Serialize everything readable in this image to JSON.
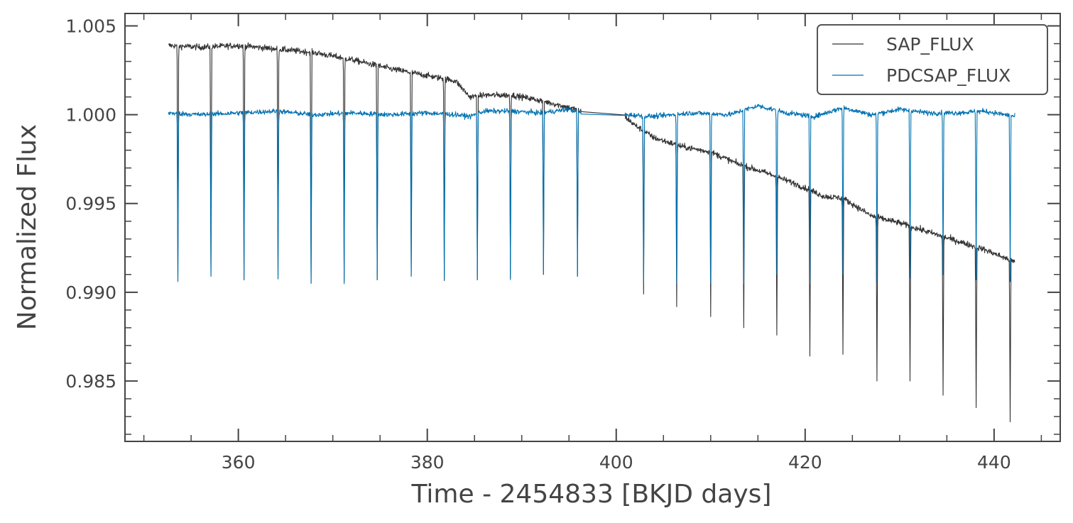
{
  "chart_data": {
    "type": "line",
    "title": "",
    "xlabel": "Time - 2454833 [BKJD days]",
    "ylabel": "Normalized Flux",
    "xlim": [
      348,
      447
    ],
    "ylim": [
      0.9816,
      1.0057
    ],
    "x_ticks": [
      360,
      380,
      400,
      420,
      440
    ],
    "x_tick_labels": [
      "360",
      "380",
      "400",
      "420",
      "440"
    ],
    "y_ticks": [
      0.985,
      0.99,
      0.995,
      1.0,
      1.005
    ],
    "y_tick_labels": [
      "0.985",
      "0.990",
      "0.995",
      "1.000",
      "1.005"
    ],
    "grid": false,
    "legend_position": "upper-right",
    "gap": [
      396.3,
      400.9
    ],
    "transit_epoch": 353.6,
    "transit_period": 3.5225,
    "series": [
      {
        "name": "SAP_FLUX",
        "color": "#333333",
        "baseline_x": [
          352.6,
          356,
          360,
          364,
          368,
          372,
          376,
          380,
          383,
          384.5,
          386,
          389,
          392,
          395,
          396.3,
          400.9,
          402,
          404,
          407,
          410,
          413,
          416,
          419,
          422,
          424,
          427,
          430,
          433,
          436,
          439,
          442.2
        ],
        "baseline_y": [
          1.0039,
          1.0038,
          1.0039,
          1.0037,
          1.0035,
          1.0031,
          1.0026,
          1.0022,
          1.0019,
          1.001,
          1.0011,
          1.0011,
          1.0008,
          1.0004,
          1.0002,
          0.9999,
          0.9994,
          0.9987,
          0.9982,
          0.9979,
          0.9972,
          0.9967,
          0.9961,
          0.9954,
          0.9953,
          0.9943,
          0.9939,
          0.9934,
          0.9929,
          0.9924,
          0.9917
        ],
        "transit_minima_x": [
          353.6,
          357.1,
          360.6,
          364.2,
          367.7,
          371.2,
          374.7,
          378.3,
          381.8,
          385.3,
          388.8,
          392.3,
          395.9,
          402.9,
          406.4,
          410.0,
          413.5,
          417.0,
          420.5,
          424.0,
          427.6,
          431.1,
          434.6,
          438.1,
          441.7
        ],
        "transit_minima_y": [
          0.9907,
          0.9909,
          0.9907,
          0.9908,
          0.9905,
          0.9906,
          0.9907,
          0.9909,
          0.9907,
          0.9907,
          0.9908,
          0.991,
          0.9909,
          0.9899,
          0.9892,
          0.9887,
          0.988,
          0.9876,
          0.9864,
          0.9865,
          0.985,
          0.985,
          0.9842,
          0.9835,
          0.9827
        ],
        "noise": 0.00017
      },
      {
        "name": "PDCSAP_FLUX",
        "color": "#0072b2",
        "baseline_x": [
          352.6,
          356,
          360,
          364,
          368,
          372,
          376,
          380,
          383,
          384.5,
          386,
          389,
          392,
          395,
          396.3,
          400.9,
          404,
          408,
          412,
          415,
          418,
          421,
          424,
          427,
          430,
          433,
          436,
          439,
          442.2
        ],
        "baseline_y": [
          1.0001,
          1.0,
          1.0001,
          1.0002,
          1.0,
          1.0001,
          1.0,
          1.0001,
          1.0,
          0.9999,
          1.0002,
          1.0002,
          1.0001,
          1.0003,
          1.0001,
          1.0,
          0.9999,
          1.0001,
          1.0,
          1.0005,
          1.0001,
          0.9999,
          1.0004,
          1.0,
          1.0003,
          1.0001,
          1.0001,
          1.0002,
          0.9999
        ],
        "transit_minima_x": [
          353.6,
          357.1,
          360.6,
          364.2,
          367.7,
          371.2,
          374.7,
          378.3,
          381.8,
          385.3,
          388.8,
          392.3,
          395.9,
          402.9,
          406.4,
          410.0,
          413.5,
          417.0,
          420.5,
          424.0,
          427.6,
          431.1,
          434.6,
          438.1,
          441.7
        ],
        "transit_minima_y": [
          0.9906,
          0.9909,
          0.9907,
          0.9908,
          0.9905,
          0.9905,
          0.9907,
          0.9909,
          0.9907,
          0.9907,
          0.9907,
          0.991,
          0.9909,
          0.9905,
          0.9905,
          0.9905,
          0.9905,
          0.991,
          0.9905,
          0.991,
          0.9906,
          0.9908,
          0.991,
          0.9907,
          0.9906
        ],
        "noise": 0.00014
      }
    ]
  }
}
